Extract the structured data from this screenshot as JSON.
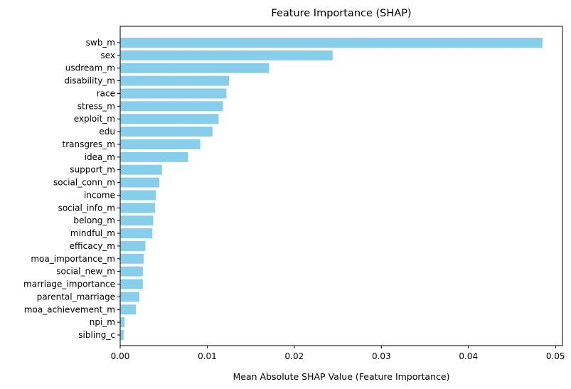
{
  "chart_data": {
    "type": "bar",
    "orientation": "horizontal",
    "title": "Feature Importance (SHAP)",
    "xlabel": "Mean Absolute SHAP Value (Feature Importance)",
    "ylabel": "",
    "xlim": [
      0,
      0.0508
    ],
    "xticks": [
      0.0,
      0.01,
      0.02,
      0.03,
      0.04,
      0.05
    ],
    "xtick_labels": [
      "0.00",
      "0.01",
      "0.02",
      "0.03",
      "0.04",
      "0.05"
    ],
    "grid": false,
    "legend": "none",
    "bar_color": "#87ceeb",
    "categories": [
      "swb_m",
      "sex",
      "usdream_m",
      "disability_m",
      "race",
      "stress_m",
      "exploit_m",
      "edu",
      "transgres_m",
      "idea_m",
      "support_m",
      "social_conn_m",
      "income",
      "social_info_m",
      "belong_m",
      "mindful_m",
      "efficacy_m",
      "moa_importance_m",
      "social_new_m",
      "marriage_importance",
      "parental_marriage",
      "moa_achievement_m",
      "npi_m",
      "sibling_c"
    ],
    "values": [
      0.0485,
      0.0244,
      0.0171,
      0.0125,
      0.0122,
      0.0118,
      0.0113,
      0.0106,
      0.0092,
      0.0078,
      0.0048,
      0.0045,
      0.0041,
      0.004,
      0.0038,
      0.0037,
      0.0029,
      0.0027,
      0.0026,
      0.0026,
      0.0022,
      0.0018,
      0.0005,
      0.0004
    ]
  }
}
